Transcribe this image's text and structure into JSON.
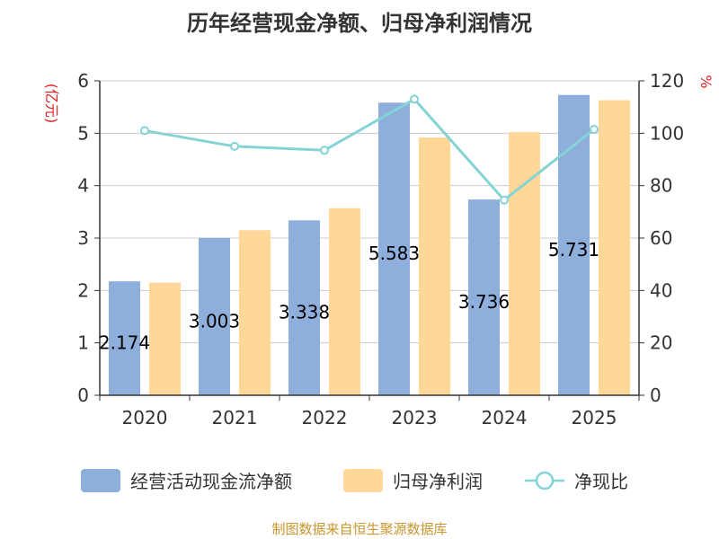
{
  "chart_data": {
    "type": "bar",
    "title": "历年经营现金净额、归母净利润情况",
    "categories": [
      "2020",
      "2021",
      "2022",
      "2023",
      "2024",
      "2025"
    ],
    "left_axis": {
      "unit": "(亿元)",
      "min": 0,
      "max": 6,
      "ticks": [
        "0",
        "1",
        "2",
        "3",
        "4",
        "5",
        "6"
      ]
    },
    "right_axis": {
      "unit": "%",
      "min": 0,
      "max": 120,
      "ticks": [
        "0",
        "20",
        "40",
        "60",
        "80",
        "100",
        "120"
      ]
    },
    "series": [
      {
        "name": "经营活动现金流净额",
        "type": "bar",
        "axis": "left",
        "color": "#8eaedb",
        "values": [
          2.174,
          3.003,
          3.338,
          5.583,
          3.736,
          5.731
        ],
        "labels": [
          "2.174",
          "3.003",
          "3.338",
          "5.583",
          "3.736",
          "5.731"
        ]
      },
      {
        "name": "归母净利润",
        "type": "bar",
        "axis": "left",
        "color": "#ffd799",
        "values": [
          2.15,
          3.15,
          3.57,
          4.92,
          5.02,
          5.63
        ]
      },
      {
        "name": "净现比",
        "type": "line",
        "axis": "right",
        "color": "#85d3d6",
        "values": [
          101.0,
          95.0,
          93.5,
          113.0,
          74.5,
          101.5
        ]
      }
    ],
    "grid": true,
    "legend_position": "bottom"
  },
  "footer": "制图数据来自恒生聚源数据库"
}
